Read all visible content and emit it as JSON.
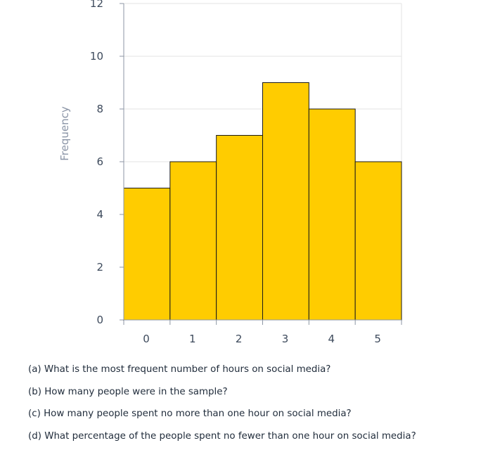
{
  "chart_data": {
    "type": "bar",
    "categories": [
      "0",
      "1",
      "2",
      "3",
      "4",
      "5"
    ],
    "values": [
      5,
      6,
      7,
      9,
      8,
      6
    ],
    "title": "",
    "xlabel": "",
    "ylabel": "Frequency",
    "ylim": [
      0,
      12
    ],
    "yticks": [
      "0",
      "2",
      "4",
      "6",
      "8",
      "10",
      "12"
    ],
    "bar_color": "#ffcc00",
    "grid": true
  },
  "questions": [
    "(a) What is the most frequent number of hours on social media?",
    "(b) How many people were in the sample?",
    "(c) How many people spent no more than one hour on social media?",
    "(d) What percentage of the people spent no fewer than one hour on social media?"
  ]
}
